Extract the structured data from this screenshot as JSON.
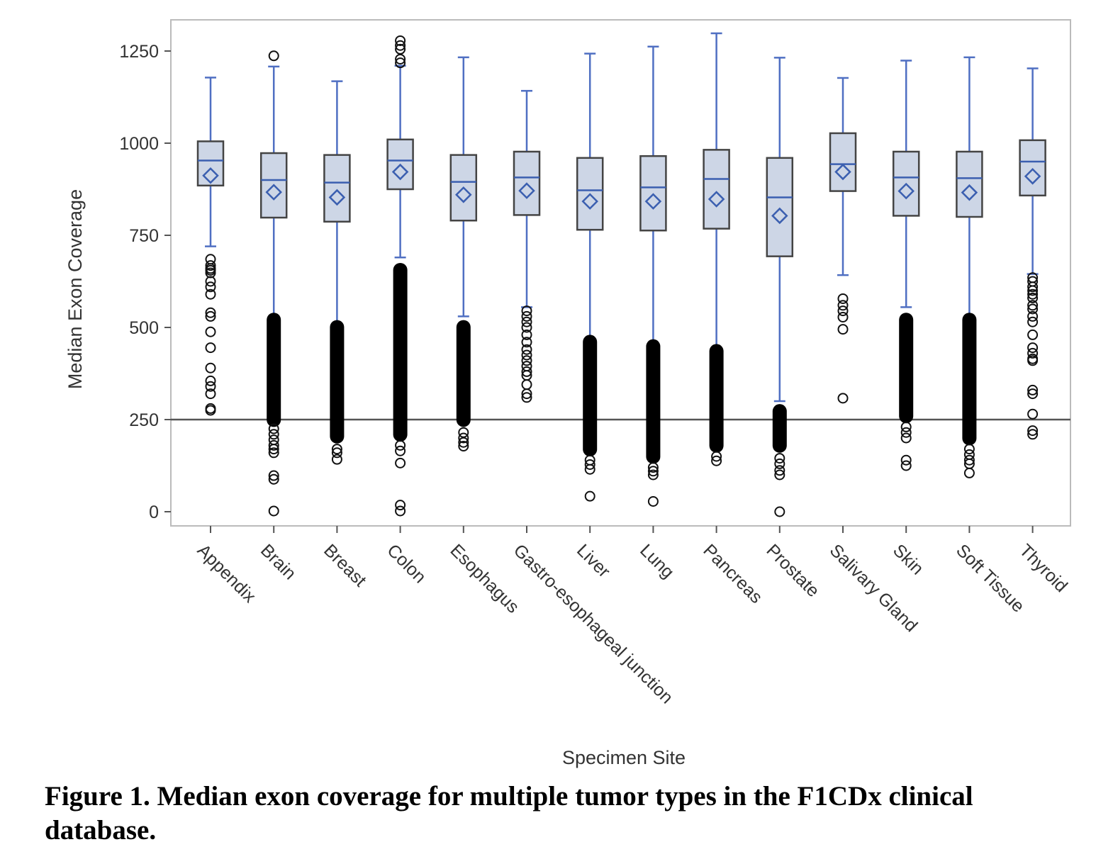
{
  "chart_data": {
    "type": "box",
    "title": "",
    "xlabel": "Specimen Site",
    "ylabel": "Median Exon Coverage",
    "ylim": [
      -40,
      1335
    ],
    "yticks": [
      0,
      250,
      500,
      750,
      1000,
      1250
    ],
    "reference_line": 250,
    "grid": false,
    "colors": {
      "box_fill": "#cdd6e6",
      "box_stroke": "#444444",
      "median": "#3b5fb0",
      "whisker": "#4f6fc2",
      "mean": "#3b5fb0",
      "reference": "#555555",
      "frame": "#bbbbbb"
    },
    "categories": [
      "Appendix",
      "Brain",
      "Breast",
      "Colon",
      "Esophagus",
      "Gastro-esophageal junction",
      "Liver",
      "Lung",
      "Pancreas",
      "Prostate",
      "Salivary Gland",
      "Skin",
      "Soft Tissue",
      "Thyroid"
    ],
    "boxes": [
      {
        "q1": 885,
        "median": 953,
        "q3": 1005,
        "mean": 912,
        "whisker_low": 720,
        "whisker_high": 1178,
        "outliers": [
          685,
          668,
          660,
          655,
          648,
          625,
          610,
          590,
          540,
          530,
          488,
          445,
          390,
          355,
          340,
          320,
          280,
          275
        ]
      },
      {
        "q1": 798,
        "median": 900,
        "q3": 973,
        "mean": 867,
        "whisker_low": 250,
        "whisker_high": 1208,
        "dense_range": [
          230,
          540
        ],
        "outliers": [
          1237,
          225,
          210,
          195,
          180,
          170,
          160,
          98,
          88,
          2
        ]
      },
      {
        "q1": 787,
        "median": 893,
        "q3": 968,
        "mean": 853,
        "whisker_low": 250,
        "whisker_high": 1168,
        "dense_range": [
          185,
          520
        ],
        "outliers": [
          170,
          160,
          142
        ]
      },
      {
        "q1": 875,
        "median": 953,
        "q3": 1010,
        "mean": 922,
        "whisker_low": 690,
        "whisker_high": 1210,
        "dense_range": [
          190,
          675
        ],
        "outliers": [
          1278,
          1265,
          1255,
          1228,
          1218,
          180,
          165,
          132,
          18,
          2
        ]
      },
      {
        "q1": 790,
        "median": 895,
        "q3": 968,
        "mean": 860,
        "whisker_low": 530,
        "whisker_high": 1233,
        "dense_range": [
          230,
          520
        ],
        "outliers": [
          215,
          200,
          188,
          178
        ]
      },
      {
        "q1": 805,
        "median": 907,
        "q3": 977,
        "mean": 871,
        "whisker_low": 555,
        "whisker_high": 1142,
        "outliers": [
          545,
          530,
          515,
          500,
          480,
          460,
          440,
          425,
          410,
          395,
          380,
          370,
          345,
          320,
          310
        ]
      },
      {
        "q1": 765,
        "median": 872,
        "q3": 960,
        "mean": 842,
        "whisker_low": 250,
        "whisker_high": 1243,
        "dense_range": [
          150,
          480
        ],
        "outliers": [
          140,
          128,
          115,
          42
        ]
      },
      {
        "q1": 763,
        "median": 880,
        "q3": 965,
        "mean": 842,
        "whisker_low": 250,
        "whisker_high": 1262,
        "dense_range": [
          130,
          468
        ],
        "outliers": [
          120,
          110,
          100,
          28
        ]
      },
      {
        "q1": 768,
        "median": 903,
        "q3": 982,
        "mean": 848,
        "whisker_low": 250,
        "whisker_high": 1298,
        "dense_range": [
          160,
          455
        ],
        "outliers": [
          150,
          138
        ]
      },
      {
        "q1": 693,
        "median": 853,
        "q3": 960,
        "mean": 803,
        "whisker_low": 300,
        "whisker_high": 1232,
        "dense_range": [
          160,
          292
        ],
        "outliers": [
          145,
          130,
          112,
          100,
          0
        ]
      },
      {
        "q1": 870,
        "median": 943,
        "q3": 1027,
        "mean": 922,
        "whisker_low": 642,
        "whisker_high": 1177,
        "outliers": [
          578,
          560,
          545,
          528,
          495,
          308
        ]
      },
      {
        "q1": 803,
        "median": 907,
        "q3": 977,
        "mean": 870,
        "whisker_low": 555,
        "whisker_high": 1224,
        "dense_range": [
          240,
          540
        ],
        "outliers": [
          230,
          215,
          200,
          140,
          125
        ]
      },
      {
        "q1": 800,
        "median": 905,
        "q3": 977,
        "mean": 866,
        "whisker_low": 250,
        "whisker_high": 1233,
        "dense_range": [
          180,
          540
        ],
        "outliers": [
          170,
          155,
          140,
          130,
          105
        ]
      },
      {
        "q1": 858,
        "median": 950,
        "q3": 1008,
        "mean": 910,
        "whisker_low": 645,
        "whisker_high": 1203,
        "outliers": [
          635,
          625,
          610,
          600,
          590,
          580,
          560,
          550,
          530,
          515,
          480,
          445,
          430,
          415,
          410,
          330,
          320,
          265,
          220,
          210
        ]
      }
    ]
  },
  "caption": "Figure 1. Median exon coverage for multiple tumor types in the F1CDx clinical database."
}
